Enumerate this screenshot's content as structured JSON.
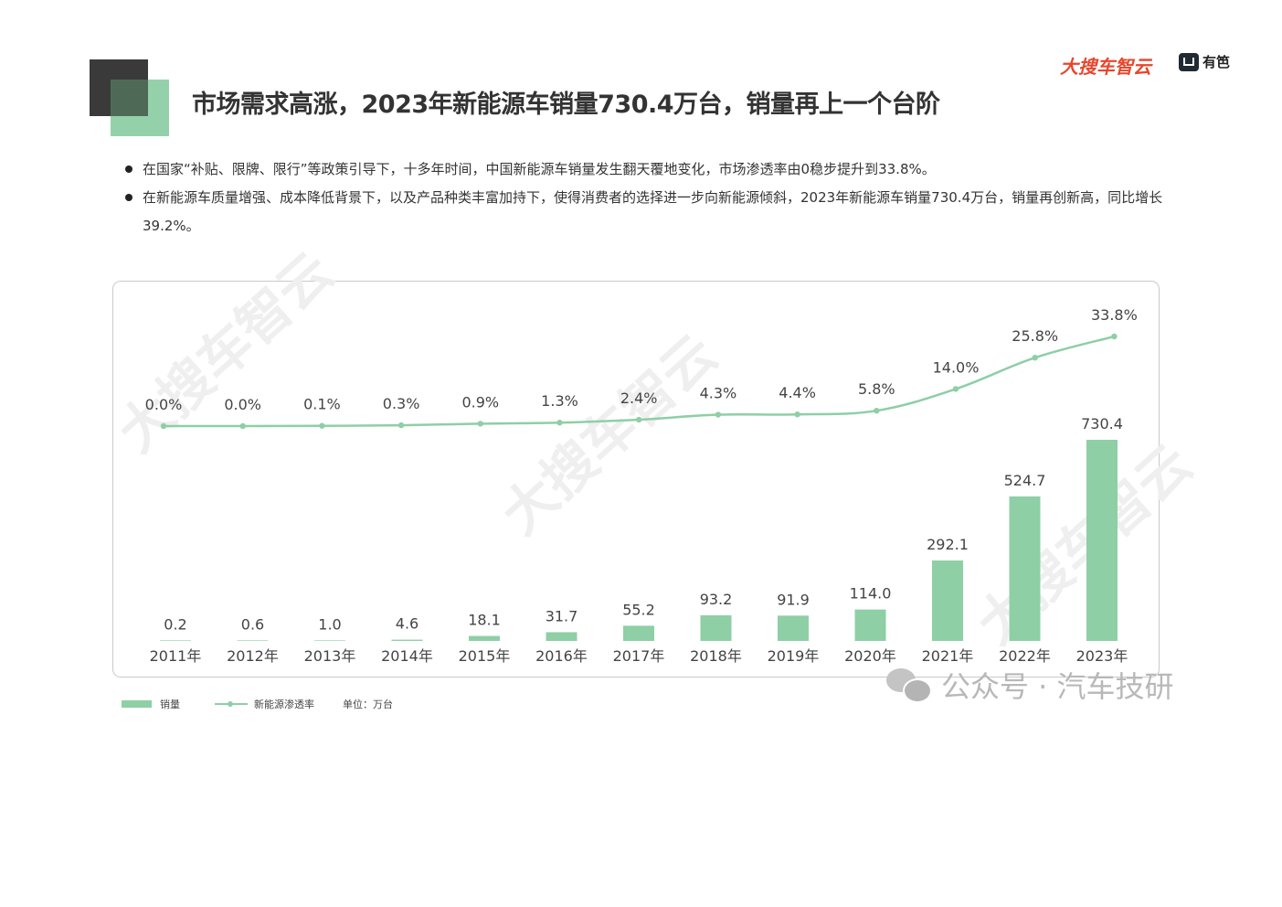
{
  "header": {
    "title": "市场需求高涨，2023年新能源车销量730.4万台，销量再上一个台阶",
    "brand_dasouche": "大搜车智云",
    "brand_youbian": "有笆"
  },
  "bullets": [
    "在国家“补贴、限牌、限行”等政策引导下，十多年时间，中国新能源车销量发生翻天覆地变化，市场渗透率由0稳步提升到33.8%。",
    "在新能源车质量增强、成本降低背景下，以及产品种类丰富加持下，使得消费者的选择进一步向新能源倾斜，2023年新能源车销量730.4万台，销量再创新高，同比增长39.2%。"
  ],
  "legend": {
    "sales_label": "销量",
    "rate_label": "新能源渗透率",
    "unit_label": "单位：万台"
  },
  "watermark": {
    "chart_text": "大搜车智云",
    "wechat_text": "公众号 · 汽车技研"
  },
  "chart_data": {
    "type": "bar",
    "categories": [
      "2011年",
      "2012年",
      "2013年",
      "2014年",
      "2015年",
      "2016年",
      "2017年",
      "2018年",
      "2019年",
      "2020年",
      "2021年",
      "2022年",
      "2023年"
    ],
    "series": [
      {
        "name": "销量",
        "type": "bar",
        "values": [
          0.2,
          0.6,
          1.0,
          4.6,
          18.1,
          31.7,
          55.2,
          93.2,
          91.9,
          114.0,
          292.1,
          524.7,
          730.4
        ],
        "labels": [
          "0.2",
          "0.6",
          "1.0",
          "4.6",
          "18.1",
          "31.7",
          "55.2",
          "93.2",
          "91.9",
          "114.0",
          "292.1",
          "524.7",
          "730.4"
        ],
        "color": "#8ecfa6"
      },
      {
        "name": "新能源渗透率",
        "type": "line",
        "values": [
          0.0,
          0.0,
          0.1,
          0.3,
          0.9,
          1.3,
          2.4,
          4.3,
          4.4,
          5.8,
          14.0,
          25.8,
          33.8
        ],
        "labels": [
          "0.0%",
          "0.0%",
          "0.1%",
          "0.3%",
          "0.9%",
          "1.3%",
          "2.4%",
          "4.3%",
          "4.4%",
          "5.8%",
          "14.0%",
          "25.8%",
          "33.8%"
        ],
        "color": "#8ecfa6"
      }
    ],
    "unit": "万台",
    "grid": false,
    "legend_position": "bottom-left"
  }
}
